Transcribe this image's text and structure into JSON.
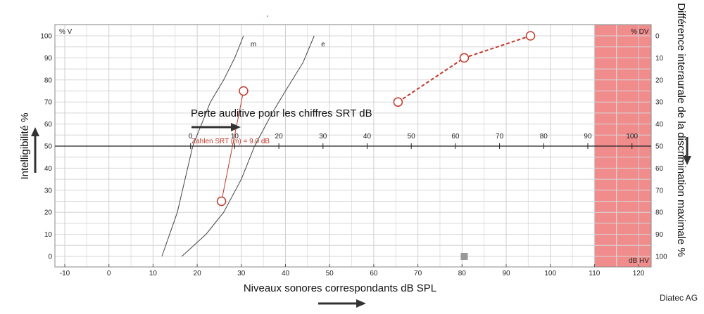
{
  "chart_data": {
    "type": "line",
    "title": "",
    "xlabel": "Niveaux sonores correspondants dB SPL",
    "ylabel": "Intelligibilité %",
    "ylabel_right": "Différence interaurale de la discrimination maximale %",
    "corner_label_top_left": "% V",
    "corner_label_top_right": "% DV",
    "corner_label_bottom_right": "dB HV",
    "credit": "Diatec AG",
    "xlim": [
      -12,
      123
    ],
    "ylim": [
      -5,
      105
    ],
    "x_ticks": [
      "-10",
      "0",
      "10",
      "20",
      "30",
      "40",
      "50",
      "60",
      "70",
      "80",
      "90",
      "100",
      "110",
      "120"
    ],
    "y_ticks": [
      "0",
      "10",
      "20",
      "30",
      "40",
      "50",
      "60",
      "70",
      "80",
      "90",
      "100"
    ],
    "y_ticks_right": [
      "100",
      "90",
      "80",
      "70",
      "60",
      "50",
      "40",
      "30",
      "20",
      "10",
      "0"
    ],
    "hv_ticks": [
      "0",
      "10",
      "20",
      "30",
      "40",
      "50",
      "60",
      "70",
      "80",
      "90",
      "100"
    ],
    "hv_offset": 18.5,
    "annotation": "Perte auditive pour les chiffres SRT dB",
    "srt_label": "Zahlen SRT (m) = 9.0 dB",
    "shaded_region": {
      "x_from": 110,
      "x_to": 123,
      "color": "#f08c8c"
    },
    "reference_curves": [
      {
        "name": "m",
        "points": [
          [
            12,
            0
          ],
          [
            15.5,
            20
          ],
          [
            19,
            50
          ],
          [
            23,
            70
          ],
          [
            26,
            80
          ],
          [
            28.5,
            90
          ],
          [
            30.5,
            100
          ]
        ]
      },
      {
        "name": "e",
        "points": [
          [
            16.5,
            0
          ],
          [
            22,
            10
          ],
          [
            26,
            20
          ],
          [
            30,
            35
          ],
          [
            33,
            50
          ],
          [
            37,
            65
          ],
          [
            40,
            75
          ],
          [
            44,
            88
          ],
          [
            46.5,
            100
          ]
        ]
      }
    ],
    "series": [
      {
        "name": "",
        "style": "solid-thin",
        "color": "#c0392b",
        "points": [
          [
            25.5,
            25
          ],
          [
            30.5,
            75
          ]
        ]
      },
      {
        "name": "",
        "style": "dashed",
        "color": "#c0392b",
        "points": [
          [
            65.5,
            70
          ],
          [
            80.5,
            90
          ],
          [
            95.5,
            100
          ]
        ]
      }
    ],
    "marker_square": {
      "x": 80.5,
      "y": 0,
      "color": "#999999"
    }
  }
}
